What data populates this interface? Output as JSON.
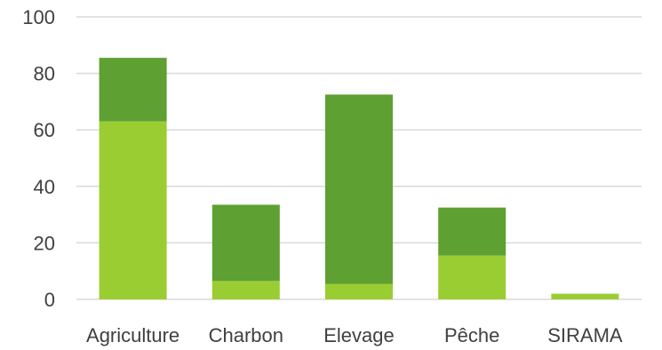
{
  "chart_data": {
    "type": "bar",
    "stacked": true,
    "categories": [
      "Agriculture",
      "Charbon",
      "Elevage",
      "Pêche",
      "SIRAMA"
    ],
    "series": [
      {
        "values": [
          63,
          6.5,
          5.5,
          15.5,
          2
        ],
        "color": "#9acd32"
      },
      {
        "values": [
          22.5,
          27,
          67,
          17,
          0
        ],
        "color": "#5ea032"
      }
    ],
    "yticks": [
      0,
      20,
      40,
      60,
      80,
      100
    ],
    "ylim": [
      0,
      100
    ],
    "grid": true,
    "legend": "none"
  }
}
